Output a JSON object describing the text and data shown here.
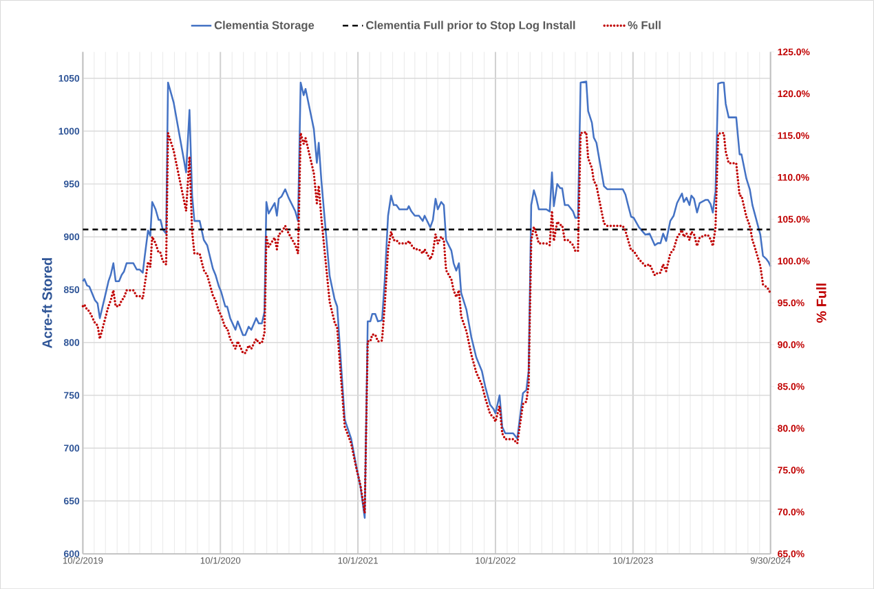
{
  "chart_data": {
    "type": "line",
    "ylabel": "Acre-ft Stored",
    "y2label": "% Full",
    "legend": "top",
    "grid": true,
    "x": [
      "2019-10-02",
      "2019-10-06",
      "2019-10-13",
      "2019-10-19",
      "2019-11-03",
      "2019-11-10",
      "2019-11-16",
      "2019-11-30",
      "2019-12-09",
      "2019-12-15",
      "2019-12-22",
      "2019-12-28",
      "2020-01-06",
      "2020-01-13",
      "2020-01-19",
      "2020-01-26",
      "2020-02-13",
      "2020-02-22",
      "2020-03-01",
      "2020-03-09",
      "2020-03-14",
      "2020-03-23",
      "2020-03-29",
      "2020-04-03",
      "2020-04-12",
      "2020-04-20",
      "2020-04-25",
      "2020-05-01",
      "2020-05-10",
      "2020-05-15",
      "2020-05-30",
      "2020-07-02",
      "2020-07-11",
      "2020-07-18",
      "2020-07-24",
      "2020-08-07",
      "2020-08-18",
      "2020-08-27",
      "2020-09-11",
      "2020-09-18",
      "2020-09-27",
      "2020-10-03",
      "2020-10-14",
      "2020-10-19",
      "2020-10-27",
      "2020-11-10",
      "2020-11-16",
      "2020-11-30",
      "2020-12-06",
      "2020-12-15",
      "2020-12-22",
      "2021-01-04",
      "2021-01-11",
      "2021-01-19",
      "2021-01-26",
      "2021-01-31",
      "2021-02-06",
      "2021-02-22",
      "2021-02-28",
      "2021-03-05",
      "2021-03-12",
      "2021-03-22",
      "2021-03-31",
      "2021-04-18",
      "2021-04-25",
      "2021-05-02",
      "2021-05-10",
      "2021-05-15",
      "2021-06-06",
      "2021-06-14",
      "2021-06-19",
      "2021-06-26",
      "2021-07-18",
      "2021-07-31",
      "2021-08-07",
      "2021-08-27",
      "2021-09-13",
      "2021-09-26",
      "2021-10-08",
      "2021-10-19",
      "2021-10-27",
      "2021-11-03",
      "2021-11-08",
      "2021-11-16",
      "2021-11-23",
      "2021-12-04",
      "2021-12-11",
      "2021-12-20",
      "2021-12-28",
      "2022-01-04",
      "2022-01-11",
      "2022-01-19",
      "2022-02-09",
      "2022-02-13",
      "2022-02-20",
      "2022-03-01",
      "2022-03-12",
      "2022-03-22",
      "2022-03-27",
      "2022-04-11",
      "2022-04-18",
      "2022-04-25",
      "2022-05-01",
      "2022-05-10",
      "2022-05-17",
      "2022-05-23",
      "2022-06-06",
      "2022-06-12",
      "2022-06-19",
      "2022-06-26",
      "2022-07-02",
      "2022-07-16",
      "2022-07-29",
      "2022-08-11",
      "2022-08-26",
      "2022-09-04",
      "2022-09-17",
      "2022-09-26",
      "2022-10-01",
      "2022-10-12",
      "2022-10-19",
      "2022-10-27",
      "2022-11-17",
      "2022-11-28",
      "2022-12-13",
      "2022-12-22",
      "2022-12-28",
      "2023-01-04",
      "2023-01-11",
      "2023-01-17",
      "2023-01-24",
      "2023-02-13",
      "2023-02-22",
      "2023-02-28",
      "2023-03-05",
      "2023-03-14",
      "2023-03-22",
      "2023-03-27",
      "2023-04-03",
      "2023-04-12",
      "2023-04-25",
      "2023-05-01",
      "2023-05-08",
      "2023-05-15",
      "2023-05-30",
      "2023-06-04",
      "2023-06-14",
      "2023-06-19",
      "2023-06-26",
      "2023-07-16",
      "2023-07-25",
      "2023-09-04",
      "2023-09-11",
      "2023-09-18",
      "2023-09-26",
      "2023-10-03",
      "2023-10-17",
      "2023-11-03",
      "2023-11-14",
      "2023-11-28",
      "2023-12-06",
      "2023-12-13",
      "2023-12-20",
      "2023-12-28",
      "2024-01-08",
      "2024-01-17",
      "2024-01-26",
      "2024-02-08",
      "2024-02-13",
      "2024-02-20",
      "2024-02-28",
      "2024-03-04",
      "2024-03-11",
      "2024-03-19",
      "2024-03-26",
      "2024-04-11",
      "2024-04-17",
      "2024-04-24",
      "2024-04-30",
      "2024-05-07",
      "2024-05-14",
      "2024-05-23",
      "2024-05-29",
      "2024-06-03",
      "2024-06-11",
      "2024-07-01",
      "2024-07-10",
      "2024-07-15",
      "2024-07-28",
      "2024-08-06",
      "2024-08-13",
      "2024-08-19",
      "2024-09-03",
      "2024-09-10",
      "2024-09-19",
      "2024-09-25",
      "2024-09-30"
    ],
    "series": [
      {
        "name": "Clementia  Storage",
        "color": "#4472c4",
        "axis": "y",
        "line_style": "solid",
        "values": [
          858,
          860,
          854,
          853,
          840,
          837,
          823,
          844,
          858,
          864,
          875,
          858,
          858,
          864,
          867,
          875,
          875,
          869,
          869,
          866,
          881,
          906,
          901,
          933,
          926,
          916,
          916,
          907,
          903,
          1046,
          1027,
          961,
          1020,
          939,
          915,
          915,
          897,
          892,
          870,
          864,
          853,
          848,
          834,
          834,
          823,
          812,
          820,
          807,
          807,
          815,
          812,
          823,
          818,
          818,
          829,
          933,
          922,
          932,
          920,
          936,
          938,
          945,
          937,
          924,
          915,
          1046,
          1034,
          1040,
          1002,
          970,
          989,
          953,
          863,
          841,
          834,
          727,
          709,
          684,
          663,
          634,
          820,
          820,
          827,
          827,
          820,
          821,
          858,
          920,
          939,
          930,
          930,
          926,
          926,
          929,
          924,
          920,
          920,
          915,
          920,
          909,
          916,
          936,
          926,
          933,
          930,
          897,
          887,
          875,
          868,
          875,
          847,
          831,
          805,
          786,
          773,
          758,
          741,
          737,
          733,
          750,
          720,
          714,
          714,
          709,
          752,
          755,
          773,
          930,
          944,
          937,
          926,
          926,
          924,
          961,
          929,
          950,
          946,
          946,
          930,
          930,
          924,
          918,
          918,
          1046,
          1047,
          1019,
          1008,
          994,
          989,
          948,
          945,
          945,
          940,
          930,
          919,
          918,
          909,
          902,
          903,
          892,
          894,
          894,
          903,
          896,
          915,
          920,
          932,
          941,
          933,
          937,
          930,
          939,
          936,
          923,
          932,
          935,
          935,
          931,
          923,
          943,
          1045,
          1046,
          1046,
          1026,
          1013,
          1013,
          978,
          978,
          955,
          945,
          930,
          922,
          902,
          882,
          879,
          876,
          872
        ]
      },
      {
        "name": "Clementia Full prior to Stop Log Install",
        "color": "#000000",
        "axis": "y",
        "line_style": "dashed",
        "x": [
          "2019-10-02",
          "2024-09-30"
        ],
        "values": [
          907,
          907
        ]
      },
      {
        "name": "% Full",
        "color": "#c00000",
        "axis": "y2",
        "line_style": "dotted",
        "values": [
          94.6,
          94.8,
          94.2,
          94.0,
          92.6,
          92.3,
          90.7,
          93.1,
          94.6,
          95.3,
          96.5,
          94.6,
          94.6,
          95.3,
          95.6,
          96.5,
          96.5,
          95.8,
          95.8,
          95.5,
          97.1,
          99.9,
          99.3,
          102.9,
          102.1,
          101.0,
          101.0,
          100.0,
          99.6,
          115.3,
          113.2,
          106.0,
          112.5,
          103.5,
          100.9,
          100.9,
          98.9,
          98.3,
          95.9,
          95.3,
          94.0,
          93.5,
          92.0,
          92.0,
          90.7,
          89.5,
          90.4,
          89.0,
          89.0,
          89.9,
          89.5,
          90.7,
          90.2,
          90.2,
          91.4,
          102.9,
          101.7,
          102.8,
          101.4,
          103.2,
          103.4,
          104.2,
          103.3,
          101.9,
          100.9,
          115.3,
          114.0,
          114.7,
          110.5,
          106.9,
          109.0,
          105.1,
          95.1,
          92.7,
          92.0,
          80.2,
          78.2,
          75.4,
          73.1,
          69.9,
          90.4,
          90.4,
          91.2,
          91.2,
          90.4,
          90.5,
          94.6,
          101.4,
          103.5,
          102.5,
          102.5,
          102.1,
          102.1,
          102.4,
          101.9,
          101.4,
          101.4,
          100.9,
          101.4,
          100.2,
          101.0,
          103.2,
          102.1,
          102.9,
          102.5,
          98.9,
          97.8,
          96.5,
          95.7,
          96.5,
          93.4,
          91.6,
          88.8,
          86.7,
          85.2,
          83.6,
          81.7,
          81.3,
          80.8,
          82.7,
          79.4,
          78.7,
          78.7,
          78.2,
          82.9,
          83.2,
          85.2,
          102.5,
          104.1,
          103.3,
          102.1,
          102.1,
          101.9,
          106.0,
          102.4,
          104.7,
          104.3,
          104.3,
          102.5,
          102.5,
          101.9,
          101.2,
          101.2,
          115.3,
          115.4,
          112.3,
          111.1,
          109.6,
          109.0,
          104.5,
          104.2,
          104.2,
          103.6,
          102.5,
          101.3,
          101.2,
          100.2,
          99.4,
          99.6,
          98.3,
          98.6,
          98.6,
          99.6,
          98.8,
          100.9,
          101.4,
          102.8,
          103.7,
          102.9,
          103.3,
          102.5,
          103.5,
          103.2,
          101.8,
          102.8,
          103.1,
          103.1,
          102.6,
          101.8,
          104.0,
          115.2,
          115.3,
          115.3,
          113.1,
          111.7,
          111.7,
          107.8,
          107.8,
          105.3,
          104.2,
          102.5,
          101.7,
          99.4,
          97.2,
          96.9,
          96.6,
          96.1
        ]
      }
    ],
    "xlim": [
      "2019-10-02",
      "2024-09-30"
    ],
    "xticks": [
      {
        "value": "2019-10-02",
        "label": "10/2/2019"
      },
      {
        "value": "2019-11-01",
        "label": null
      },
      {
        "value": "2019-12-01",
        "label": null
      },
      {
        "value": "2020-01-01",
        "label": null
      },
      {
        "value": "2020-02-01",
        "label": null
      },
      {
        "value": "2020-03-01",
        "label": null
      },
      {
        "value": "2020-04-01",
        "label": null
      },
      {
        "value": "2020-05-01",
        "label": null
      },
      {
        "value": "2020-06-01",
        "label": null
      },
      {
        "value": "2020-07-01",
        "label": null
      },
      {
        "value": "2020-08-01",
        "label": null
      },
      {
        "value": "2020-09-01",
        "label": null
      },
      {
        "value": "2020-10-01",
        "label": "10/1/2020"
      },
      {
        "value": "2020-11-01",
        "label": null
      },
      {
        "value": "2020-12-01",
        "label": null
      },
      {
        "value": "2021-01-01",
        "label": null
      },
      {
        "value": "2021-02-01",
        "label": null
      },
      {
        "value": "2021-03-01",
        "label": null
      },
      {
        "value": "2021-04-01",
        "label": null
      },
      {
        "value": "2021-05-01",
        "label": null
      },
      {
        "value": "2021-06-01",
        "label": null
      },
      {
        "value": "2021-07-01",
        "label": null
      },
      {
        "value": "2021-08-01",
        "label": null
      },
      {
        "value": "2021-09-01",
        "label": null
      },
      {
        "value": "2021-10-01",
        "label": "10/1/2021"
      },
      {
        "value": "2021-11-01",
        "label": null
      },
      {
        "value": "2021-12-01",
        "label": null
      },
      {
        "value": "2022-01-01",
        "label": null
      },
      {
        "value": "2022-02-01",
        "label": null
      },
      {
        "value": "2022-03-01",
        "label": null
      },
      {
        "value": "2022-04-01",
        "label": null
      },
      {
        "value": "2022-05-01",
        "label": null
      },
      {
        "value": "2022-06-01",
        "label": null
      },
      {
        "value": "2022-07-01",
        "label": null
      },
      {
        "value": "2022-08-01",
        "label": null
      },
      {
        "value": "2022-09-01",
        "label": null
      },
      {
        "value": "2022-10-01",
        "label": "10/1/2022"
      },
      {
        "value": "2022-11-01",
        "label": null
      },
      {
        "value": "2022-12-01",
        "label": null
      },
      {
        "value": "2023-01-01",
        "label": null
      },
      {
        "value": "2023-02-01",
        "label": null
      },
      {
        "value": "2023-03-01",
        "label": null
      },
      {
        "value": "2023-04-01",
        "label": null
      },
      {
        "value": "2023-05-01",
        "label": null
      },
      {
        "value": "2023-06-01",
        "label": null
      },
      {
        "value": "2023-07-01",
        "label": null
      },
      {
        "value": "2023-08-01",
        "label": null
      },
      {
        "value": "2023-09-01",
        "label": null
      },
      {
        "value": "2023-10-01",
        "label": "10/1/2023"
      },
      {
        "value": "2023-11-01",
        "label": null
      },
      {
        "value": "2023-12-01",
        "label": null
      },
      {
        "value": "2024-01-01",
        "label": null
      },
      {
        "value": "2024-02-01",
        "label": null
      },
      {
        "value": "2024-03-01",
        "label": null
      },
      {
        "value": "2024-04-01",
        "label": null
      },
      {
        "value": "2024-05-01",
        "label": null
      },
      {
        "value": "2024-06-01",
        "label": null
      },
      {
        "value": "2024-07-01",
        "label": null
      },
      {
        "value": "2024-08-01",
        "label": null
      },
      {
        "value": "2024-09-01",
        "label": null
      },
      {
        "value": "2024-09-30",
        "label": "9/30/2024"
      }
    ],
    "ylim": [
      600,
      1075
    ],
    "yticks": [
      600,
      650,
      700,
      750,
      800,
      850,
      900,
      950,
      1000,
      1050
    ],
    "y2lim": [
      65,
      125
    ],
    "y2ticks": [
      {
        "value": 65,
        "label": "65.0%"
      },
      {
        "value": 70,
        "label": "70.0%"
      },
      {
        "value": 75,
        "label": "75.0%"
      },
      {
        "value": 80,
        "label": "80.0%"
      },
      {
        "value": 85,
        "label": "85.0%"
      },
      {
        "value": 90,
        "label": "90.0%"
      },
      {
        "value": 95,
        "label": "95.0%"
      },
      {
        "value": 100,
        "label": "100.0%"
      },
      {
        "value": 105,
        "label": "105.0%"
      },
      {
        "value": 110,
        "label": "110.0%"
      },
      {
        "value": 115,
        "label": "115.0%"
      },
      {
        "value": 120,
        "label": "120.0%"
      },
      {
        "value": 125,
        "label": "125.0%"
      }
    ]
  }
}
